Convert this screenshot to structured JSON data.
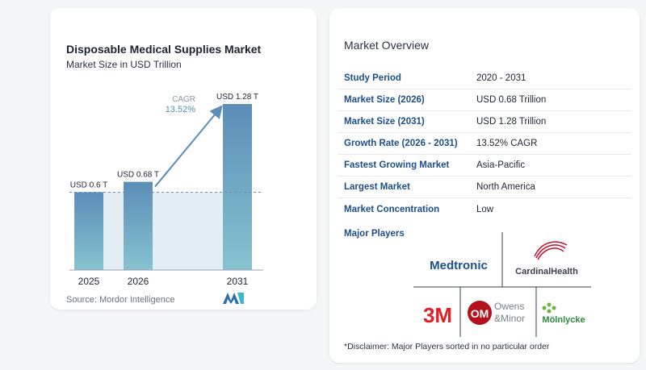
{
  "chart": {
    "title": "Disposable Medical Supplies Market",
    "subtitle": "Market Size in USD Trillion",
    "source": "Source:  Mordor Intelligence",
    "cagr_label": "CAGR",
    "cagr_value": "13.52%"
  },
  "chart_data": {
    "type": "bar",
    "title": "Disposable Medical Supplies Market",
    "subtitle": "Market Size in USD Trillion",
    "categories": [
      "2025",
      "2026",
      "2031"
    ],
    "values": [
      0.6,
      0.68,
      1.28
    ],
    "data_labels": [
      "USD 0.6 T",
      "USD 0.68 T",
      "USD 1.28 T"
    ],
    "ylim": [
      0,
      1.28
    ],
    "grid": false,
    "colors": {
      "bar_top": "#5b8db8",
      "bar_bottom": "#86c3cf",
      "area": "#e4ecf4",
      "arrow": "#5b8db8",
      "cagr": "#4a90c2"
    }
  },
  "overview": {
    "title": "Market Overview",
    "rows": [
      {
        "label": "Study Period",
        "value": "2020 - 2031"
      },
      {
        "label": "Market Size (2026)",
        "value": "USD 0.68 Trillion"
      },
      {
        "label": "Market Size (2031)",
        "value": "USD 1.28 Trillion"
      },
      {
        "label": "Growth Rate (2026 - 2031)",
        "value": "13.52% CAGR"
      },
      {
        "label": "Fastest Growing Market",
        "value": "Asia-Pacific"
      },
      {
        "label": "Largest Market",
        "value": "North America"
      },
      {
        "label": "Market Concentration",
        "value": "Low"
      }
    ],
    "players_title": "Major Players",
    "players": [
      {
        "name": "Medtronic"
      },
      {
        "name": "CardinalHealth"
      },
      {
        "name": "3M"
      },
      {
        "name": "Owens & Minor",
        "line1": "Owens",
        "line2": "&Minor"
      },
      {
        "name": "Mölnlycke"
      }
    ],
    "disclaimer": "*Disclaimer: Major Players sorted in no particular order"
  }
}
